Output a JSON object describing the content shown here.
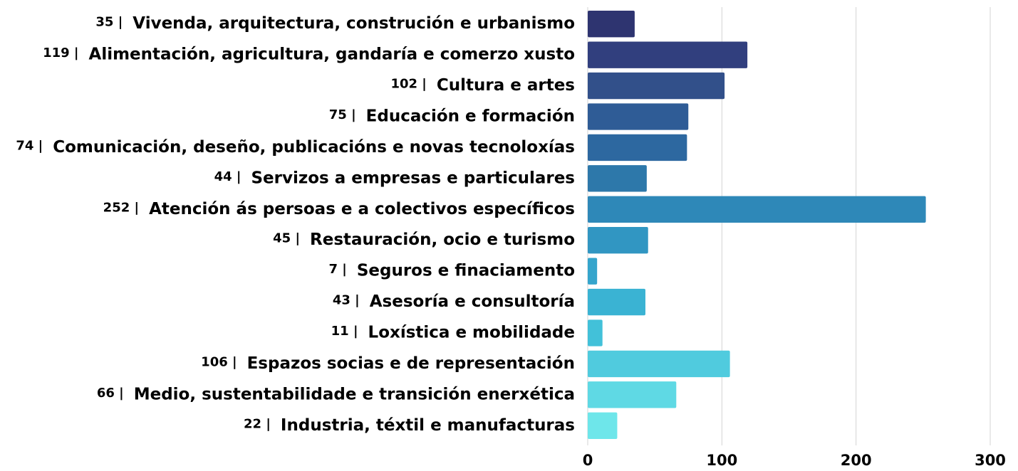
{
  "chart_data": {
    "type": "hbar",
    "categories": [
      "Vivenda, arquitectura, construción e urbanismo",
      "Alimentación, agricultura, gandaría e comerzo xusto",
      "Cultura e artes",
      "Educación e formación",
      "Comunicación, deseño, publicacións e novas tecnoloxías",
      "Servizos a empresas e particulares",
      "Atención ás persoas e a colectivos específicos",
      "Restauración, ocio e turismo",
      "Seguros e finaciamento",
      "Asesoría e consultoría",
      "Loxística e mobilidade",
      "Espazos socias e de representación",
      "Medio, sustentabilidade e transición enerxética",
      "Industria, téxtil e manufacturas"
    ],
    "values": [
      35,
      119,
      102,
      75,
      74,
      44,
      252,
      45,
      7,
      43,
      11,
      106,
      66,
      22
    ],
    "value_labels": [
      "35 |",
      "119 |",
      "102 |",
      "75 |",
      "74 |",
      "44 |",
      "252 |",
      "45 |",
      "7 |",
      "43 |",
      "11 |",
      "106 |",
      "66 |",
      "22 |"
    ],
    "colors": [
      "#2e3470",
      "#313f7e",
      "#32508a",
      "#2f5c96",
      "#2d68a0",
      "#2d78aa",
      "#2e88b8",
      "#3196c2",
      "#35a5cc",
      "#3ab3d3",
      "#42c1d9",
      "#50cbde",
      "#5fd9e4",
      "#6ee6ea"
    ],
    "xlim": [
      0,
      300
    ],
    "xticks": [
      0,
      100,
      200,
      300
    ],
    "grid": true
  }
}
